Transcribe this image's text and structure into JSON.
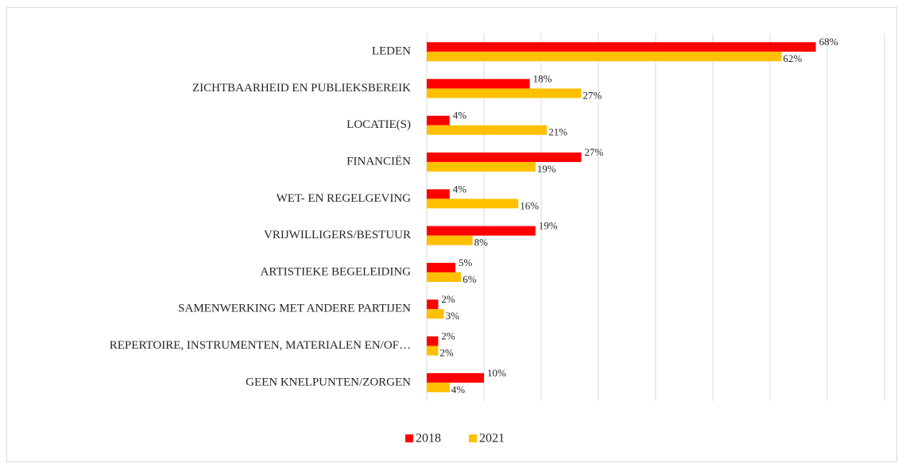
{
  "chart_data": {
    "type": "hbar",
    "categories": [
      "LEDEN",
      "ZICHTBAARHEID EN PUBLIEKSBEREIK",
      "LOCATIE(S)",
      "FINANCIËN",
      "WET- EN REGELGEVING",
      "VRIJWILLIGERS/BESTUUR",
      "ARTISTIEKE BEGELEIDING",
      "SAMENWERKING MET ANDERE PARTIJEN",
      "REPERTOIRE, INSTRUMENTEN, MATERIALEN EN/OF…",
      "GEEN KNELPUNTEN/ZORGEN"
    ],
    "series": [
      {
        "name": "2018",
        "color": "#ff0000",
        "values": [
          68,
          18,
          4,
          27,
          4,
          19,
          5,
          2,
          2,
          10
        ],
        "value_labels": [
          "68%",
          "18%",
          "4%",
          "27%",
          "4%",
          "19%",
          "5%",
          "2%",
          "2%",
          "10%"
        ]
      },
      {
        "name": "2021",
        "color": "#ffc000",
        "values": [
          62,
          27,
          21,
          19,
          16,
          8,
          6,
          3,
          2,
          4
        ],
        "value_labels": [
          "62%",
          "27%",
          "21%",
          "19%",
          "16%",
          "8%",
          "6%",
          "3%",
          "2%",
          "4%"
        ]
      }
    ],
    "xlim": [
      0,
      80
    ],
    "xticks": [
      0,
      10,
      20,
      30,
      40,
      50,
      60,
      70,
      80
    ],
    "grid": true,
    "legend": "bottom"
  }
}
